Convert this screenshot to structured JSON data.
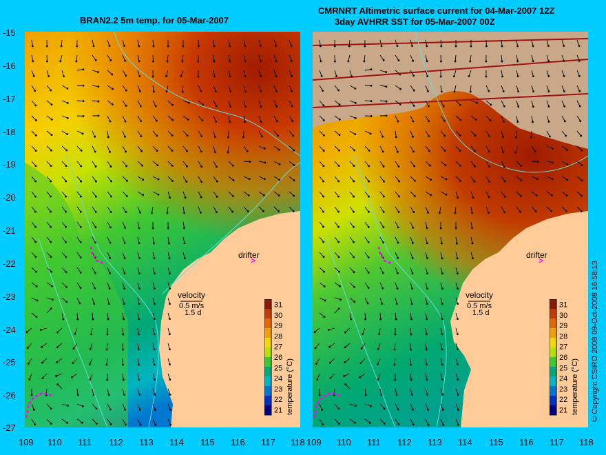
{
  "left_panel": {
    "title": "BRAN2.2 5m temp. for 05-Mar-2007",
    "label_drifter": "drifter",
    "label_velocity": "velocity",
    "label_speed": "0.5 m/s",
    "label_days": "1.5 d"
  },
  "right_panel": {
    "title_line1": "CMRNRT Altimetric surface current for 04-Mar-2007 12Z",
    "title_line2": "3day AVHRR SST for 05-Mar-2007 00Z",
    "label_drifter": "drifter",
    "label_velocity": "velocity",
    "label_speed": "0.5 m/s",
    "label_days": "1.5 d"
  },
  "axes": {
    "lat_ticks": [
      "-15",
      "-16",
      "-17",
      "-18",
      "-19",
      "-20",
      "-21",
      "-22",
      "-23",
      "-24",
      "-25",
      "-26",
      "-27"
    ],
    "lon_ticks": [
      "109",
      "110",
      "111",
      "112",
      "113",
      "114",
      "115",
      "116",
      "117",
      "118"
    ]
  },
  "colorbar": {
    "label": "temperature (°C)",
    "ticks": [
      "31",
      "30",
      "29",
      "28",
      "27",
      "26",
      "25",
      "24",
      "23",
      "22",
      "21"
    ],
    "colors": [
      "#8b1a00",
      "#c23b00",
      "#e06a00",
      "#f0a000",
      "#f5d800",
      "#b8e000",
      "#40c830",
      "#00a878",
      "#00b4c0",
      "#0078d0",
      "#0030c0",
      "#000080"
    ]
  },
  "copyright": "© Copyright CSIRO 2008   09-Oct-2008 16:58:13",
  "colors": {
    "background": "#00ccff",
    "land": "#ffcc99",
    "cloud": "#c8a888",
    "bathymetry": "#66dddd",
    "drifter": "#ff00ff"
  }
}
